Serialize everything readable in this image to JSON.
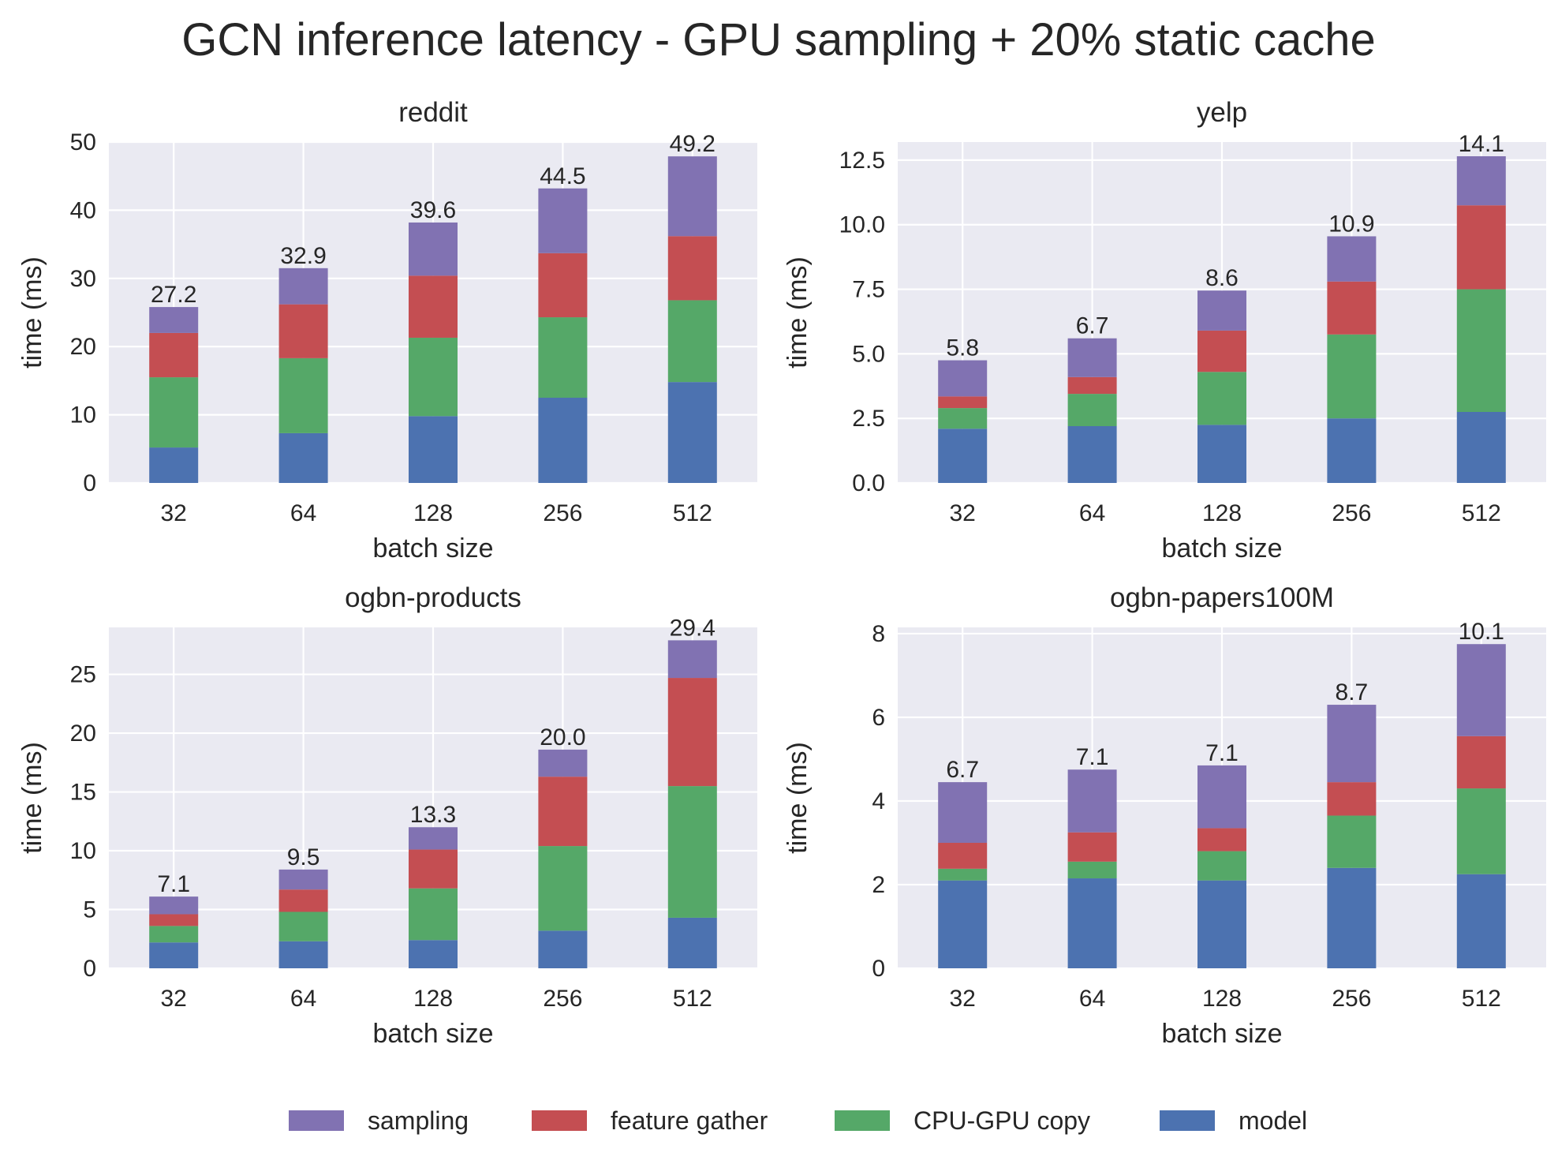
{
  "figure": {
    "title": "GCN inference latency  - GPU sampling + 20% static cache"
  },
  "series": [
    {
      "key": "model",
      "name": "model",
      "color": "#4C72B0"
    },
    {
      "key": "copy",
      "name": "CPU-GPU copy",
      "color": "#55A868"
    },
    {
      "key": "gather",
      "name": "feature gather",
      "color": "#C44E52"
    },
    {
      "key": "sampling",
      "name": "sampling",
      "color": "#8172B2"
    }
  ],
  "legend": {
    "placement": "bottom-center",
    "order": [
      "sampling",
      "gather",
      "copy",
      "model"
    ]
  },
  "chart_data": [
    {
      "type": "bar",
      "stacked": true,
      "title": "reddit",
      "xlabel": "batch size",
      "ylabel": "time (ms)",
      "categories": [
        "32",
        "64",
        "128",
        "256",
        "512"
      ],
      "ylim": [
        0,
        50
      ],
      "yticks": [
        "0",
        "10",
        "20",
        "30",
        "40",
        "50"
      ],
      "ytick_values": [
        0,
        10,
        20,
        30,
        40,
        50
      ],
      "grid": true,
      "stack": {
        "model": [
          5.2,
          7.3,
          9.8,
          12.5,
          14.8
        ],
        "copy": [
          10.3,
          11.0,
          11.5,
          11.8,
          12.0
        ],
        "gather": [
          6.5,
          7.9,
          9.1,
          9.4,
          9.4
        ],
        "sampling": [
          3.8,
          5.3,
          7.8,
          9.5,
          11.7
        ]
      },
      "total_labels": [
        "27.2",
        "32.9",
        "39.6",
        "44.5",
        "49.2"
      ]
    },
    {
      "type": "bar",
      "stacked": true,
      "title": "yelp",
      "xlabel": "batch size",
      "ylabel": "time (ms)",
      "categories": [
        "32",
        "64",
        "128",
        "256",
        "512"
      ],
      "ylim": [
        0,
        13.2
      ],
      "yticks": [
        "0.0",
        "2.5",
        "5.0",
        "7.5",
        "10.0",
        "12.5"
      ],
      "ytick_values": [
        0,
        2.5,
        5,
        7.5,
        10,
        12.5
      ],
      "grid": true,
      "stack": {
        "model": [
          2.1,
          2.2,
          2.25,
          2.5,
          2.75
        ],
        "copy": [
          0.8,
          1.25,
          2.05,
          3.25,
          4.75
        ],
        "gather": [
          0.45,
          0.65,
          1.6,
          2.05,
          3.25
        ],
        "sampling": [
          1.4,
          1.5,
          1.55,
          1.75,
          1.9
        ]
      },
      "total_labels": [
        "5.8",
        "6.7",
        "8.6",
        "10.9",
        "14.1"
      ]
    },
    {
      "type": "bar",
      "stacked": true,
      "title": "ogbn-products",
      "xlabel": "batch size",
      "ylabel": "time (ms)",
      "categories": [
        "32",
        "64",
        "128",
        "256",
        "512"
      ],
      "ylim": [
        0,
        29
      ],
      "yticks": [
        "0",
        "5",
        "10",
        "15",
        "20",
        "25"
      ],
      "ytick_values": [
        0,
        5,
        10,
        15,
        20,
        25
      ],
      "grid": true,
      "stack": {
        "model": [
          2.2,
          2.3,
          2.4,
          3.2,
          4.3
        ],
        "copy": [
          1.4,
          2.5,
          4.4,
          7.2,
          11.2
        ],
        "gather": [
          1.0,
          1.9,
          3.3,
          5.9,
          9.2
        ],
        "sampling": [
          1.5,
          1.7,
          1.9,
          2.3,
          3.2
        ]
      },
      "total_labels": [
        "7.1",
        "9.5",
        "13.3",
        "20.0",
        "29.4"
      ]
    },
    {
      "type": "bar",
      "stacked": true,
      "title": "ogbn-papers100M",
      "xlabel": "batch size",
      "ylabel": "time (ms)",
      "categories": [
        "32",
        "64",
        "128",
        "256",
        "512"
      ],
      "ylim": [
        0,
        8.15
      ],
      "yticks": [
        "0",
        "2",
        "4",
        "6",
        "8"
      ],
      "ytick_values": [
        0,
        2,
        4,
        6,
        8
      ],
      "grid": true,
      "stack": {
        "model": [
          2.1,
          2.15,
          2.1,
          2.4,
          2.25
        ],
        "copy": [
          0.28,
          0.4,
          0.7,
          1.25,
          2.05
        ],
        "gather": [
          0.62,
          0.7,
          0.55,
          0.8,
          1.25
        ],
        "sampling": [
          1.45,
          1.5,
          1.5,
          1.85,
          2.2
        ]
      },
      "total_labels": [
        "6.7",
        "7.1",
        "7.1",
        "8.7",
        "10.1"
      ]
    }
  ]
}
